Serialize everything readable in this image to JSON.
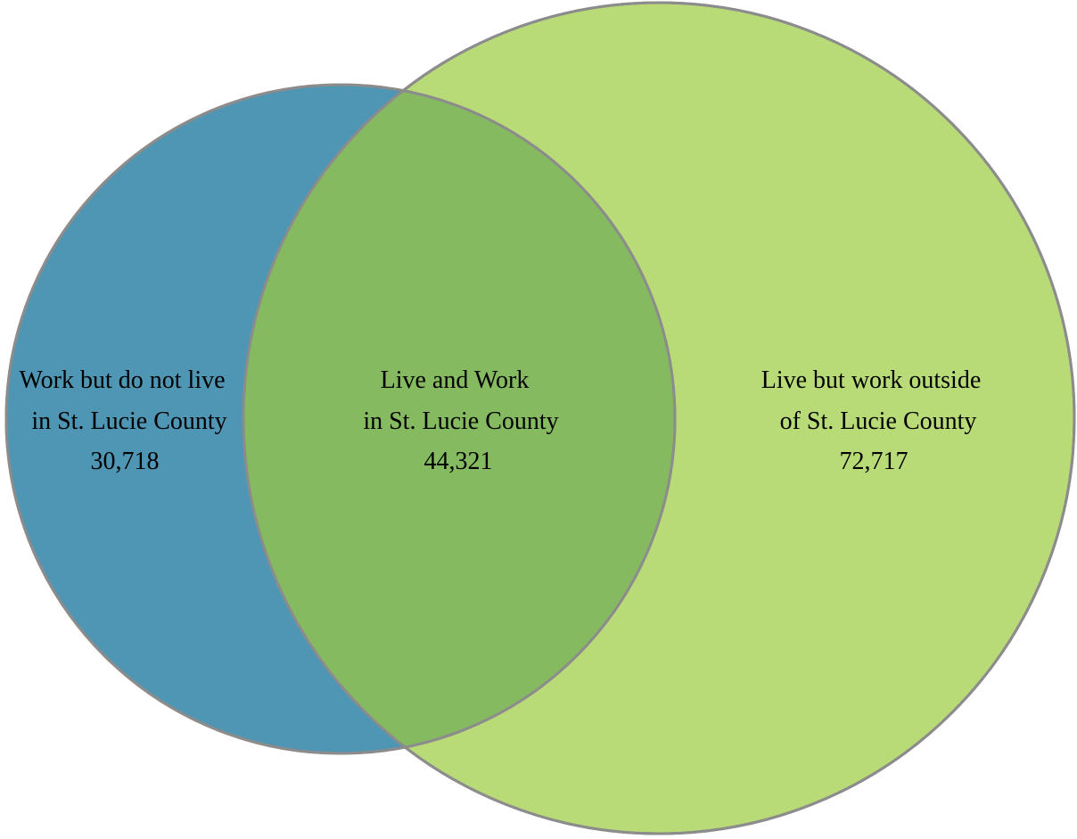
{
  "diagram": {
    "type": "venn",
    "colors": {
      "left_circle": "#4E96B3",
      "right_circle": "#B8DB78",
      "overlap": "#86BA60",
      "outline": "#8C8C8C"
    },
    "regions": [
      {
        "id": "work-not-live",
        "lines": [
          "Work but do not live",
          "in St. Lucie County"
        ],
        "value": "30,718"
      },
      {
        "id": "live-and-work",
        "lines": [
          "Live and Work",
          "in St. Lucie County"
        ],
        "value": "44,321"
      },
      {
        "id": "live-work-outside",
        "lines": [
          "Live but work outside",
          "of St. Lucie County"
        ],
        "value": "72,717"
      }
    ]
  }
}
